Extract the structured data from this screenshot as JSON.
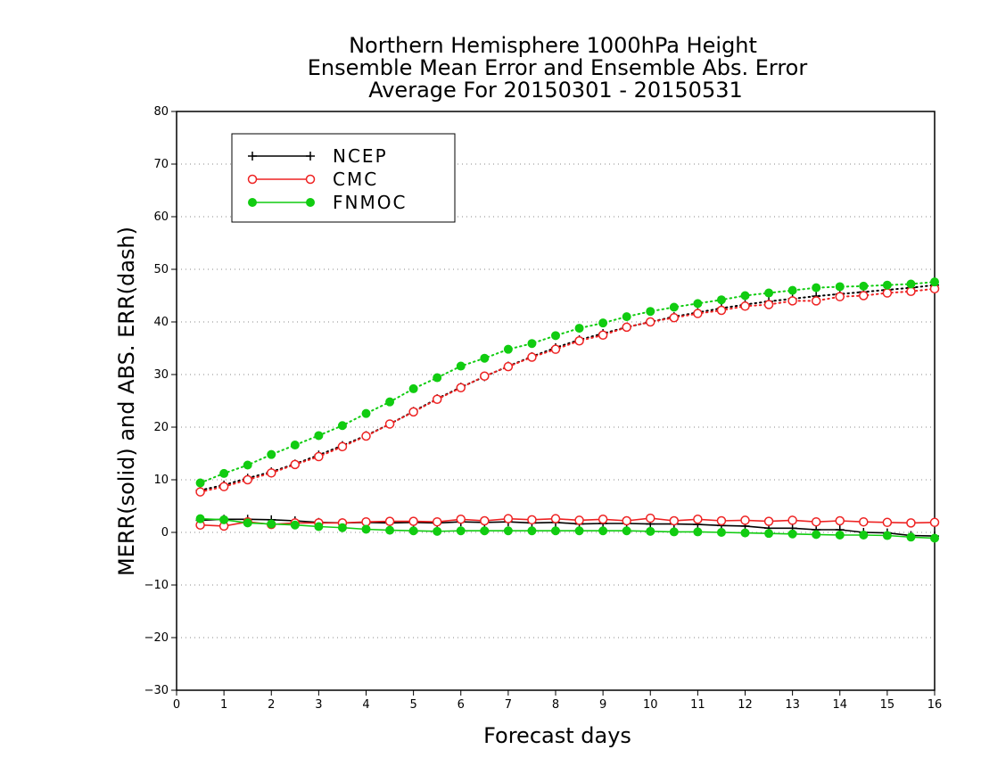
{
  "chart_data": {
    "type": "line",
    "title_lines": [
      "Northern Hemisphere 1000hPa Height",
      "Ensemble Mean Error and Ensemble Abs. Error",
      "Average For 20150301 - 20150531"
    ],
    "xlabel": "Forecast days",
    "ylabel": "MERR(solid) and ABS. ERR(dash)",
    "xlim": [
      0,
      16
    ],
    "ylim": [
      -30,
      80
    ],
    "xticks": [
      "0",
      "1",
      "2",
      "3",
      "4",
      "5",
      "6",
      "7",
      "8",
      "9",
      "10",
      "11",
      "12",
      "13",
      "14",
      "15",
      "16"
    ],
    "yticks": [
      "−30",
      "−20",
      "−10",
      "0",
      "10",
      "20",
      "30",
      "40",
      "50",
      "60",
      "70",
      "80"
    ],
    "grid": "horizontal dotted",
    "legend_position": "top-left",
    "x": [
      0.5,
      1,
      1.5,
      2,
      2.5,
      3,
      3.5,
      4,
      4.5,
      5,
      5.5,
      6,
      6.5,
      7,
      7.5,
      8,
      8.5,
      9,
      9.5,
      10,
      10.5,
      11,
      11.5,
      12,
      12.5,
      13,
      13.5,
      14,
      14.5,
      15,
      15.5,
      16
    ],
    "series": [
      {
        "name": "NCEP",
        "color": "#000000",
        "marker": "plus",
        "kind": "mean_error",
        "line": "solid",
        "values": [
          2.3,
          2.5,
          2.5,
          2.4,
          2.2,
          1.9,
          1.8,
          1.9,
          1.8,
          1.9,
          1.8,
          2.0,
          1.9,
          2.0,
          1.8,
          1.9,
          1.6,
          1.7,
          1.7,
          1.6,
          1.6,
          1.5,
          1.3,
          1.2,
          0.8,
          0.8,
          0.5,
          0.5,
          0.0,
          -0.1,
          -0.6,
          -0.7
        ]
      },
      {
        "name": "CMC",
        "color": "#ee2222",
        "marker": "open-circle",
        "kind": "mean_error",
        "line": "solid",
        "values": [
          1.4,
          1.2,
          2.0,
          1.5,
          1.8,
          1.8,
          1.8,
          2.0,
          2.1,
          2.1,
          2.0,
          2.5,
          2.2,
          2.6,
          2.4,
          2.6,
          2.3,
          2.5,
          2.2,
          2.7,
          2.2,
          2.5,
          2.2,
          2.3,
          2.1,
          2.3,
          2.0,
          2.2,
          2.0,
          1.9,
          1.8,
          1.9
        ]
      },
      {
        "name": "FNMOC",
        "color": "#11cc11",
        "marker": "filled-circle",
        "kind": "mean_error",
        "line": "solid",
        "values": [
          2.6,
          2.4,
          1.8,
          1.6,
          1.4,
          1.1,
          0.9,
          0.6,
          0.4,
          0.3,
          0.2,
          0.3,
          0.3,
          0.3,
          0.3,
          0.3,
          0.3,
          0.3,
          0.3,
          0.2,
          0.1,
          0.1,
          0.0,
          -0.1,
          -0.2,
          -0.3,
          -0.4,
          -0.5,
          -0.5,
          -0.6,
          -0.9,
          -1.1
        ]
      },
      {
        "name": "NCEP",
        "color": "#000000",
        "marker": "plus",
        "kind": "abs_error",
        "line": "dotted",
        "values": [
          8.0,
          9.0,
          10.3,
          11.5,
          13.0,
          14.7,
          16.5,
          18.4,
          20.6,
          23.0,
          25.4,
          27.6,
          29.6,
          31.6,
          33.4,
          35.1,
          36.6,
          37.8,
          39.0,
          40.0,
          41.0,
          41.8,
          42.6,
          43.3,
          43.9,
          44.4,
          44.9,
          45.3,
          45.7,
          46.1,
          46.5,
          47.0
        ]
      },
      {
        "name": "CMC",
        "color": "#ee2222",
        "marker": "open-circle",
        "kind": "abs_error",
        "line": "dotted",
        "values": [
          7.7,
          8.7,
          10.0,
          11.3,
          12.9,
          14.4,
          16.3,
          18.3,
          20.6,
          22.9,
          25.3,
          27.5,
          29.7,
          31.5,
          33.3,
          34.8,
          36.4,
          37.5,
          39.0,
          40.0,
          40.8,
          41.6,
          42.2,
          43.0,
          43.3,
          44.0,
          44.0,
          44.8,
          45.0,
          45.5,
          45.8,
          46.3
        ]
      },
      {
        "name": "FNMOC",
        "color": "#11cc11",
        "marker": "filled-circle",
        "kind": "abs_error",
        "line": "dotted",
        "values": [
          9.4,
          11.2,
          12.8,
          14.8,
          16.6,
          18.4,
          20.3,
          22.6,
          24.8,
          27.3,
          29.4,
          31.6,
          33.1,
          34.8,
          35.9,
          37.4,
          38.8,
          39.8,
          41.0,
          42.0,
          42.8,
          43.5,
          44.2,
          45.0,
          45.5,
          46.0,
          46.5,
          46.7,
          46.8,
          47.0,
          47.2,
          47.6
        ]
      }
    ],
    "legend": [
      {
        "name": "NCEP",
        "color": "#000000",
        "marker": "plus"
      },
      {
        "name": "CMC",
        "color": "#ee2222",
        "marker": "open-circle"
      },
      {
        "name": "FNMOC",
        "color": "#11cc11",
        "marker": "filled-circle"
      }
    ]
  }
}
